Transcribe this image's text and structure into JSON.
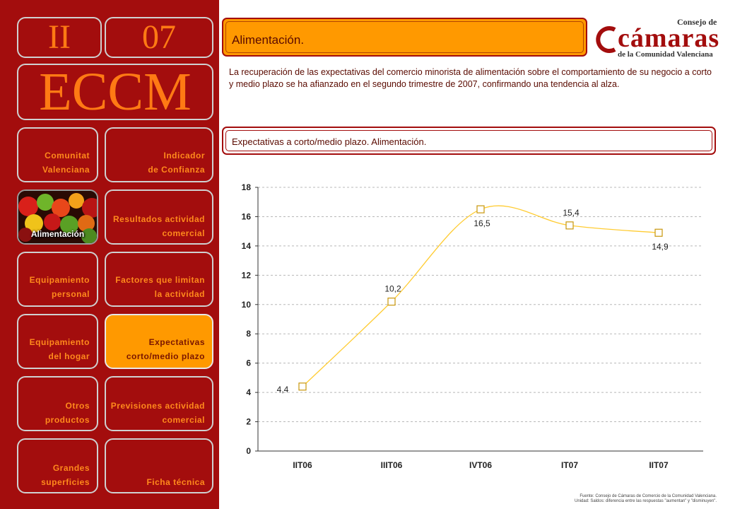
{
  "sidebar": {
    "section": "II",
    "number": "07",
    "acronym": "ECCM",
    "image_tile": {
      "label": "Alimentación",
      "icon": "fruits-image"
    },
    "items": [
      {
        "lines": [
          "Comunitat",
          "Valenciana"
        ]
      },
      {
        "lines": [
          "Indicador",
          "de Confianza"
        ]
      },
      {
        "lines": [
          "Resultados actividad",
          "comercial"
        ]
      },
      {
        "lines": [
          "Equipamiento",
          "personal"
        ]
      },
      {
        "lines": [
          "Factores que limitan",
          "la actividad"
        ]
      },
      {
        "lines": [
          "Equipamiento",
          "del hogar"
        ]
      },
      {
        "lines": [
          "Expectativas",
          "corto/medio plazo"
        ],
        "active": true
      },
      {
        "lines": [
          "Otros",
          "productos"
        ]
      },
      {
        "lines": [
          "Previsiones actividad",
          "comercial"
        ]
      },
      {
        "lines": [
          "Grandes",
          "superficies"
        ]
      },
      {
        "lines": [
          "Ficha técnica"
        ]
      }
    ]
  },
  "header": {
    "title": "Alimentación.",
    "description": "La recuperación de las expectativas del comercio minorista de alimentación sobre el comportamiento de su negocio a corto y medio plazo se ha afianzado en el segundo trimestre de 2007, confirmando una tendencia al alza.",
    "subtitle": "Expectativas a corto/medio plazo. Alimentación."
  },
  "logo": {
    "pre": "Consejo de",
    "main": "cámaras",
    "post": "de la Comunidad Valenciana"
  },
  "colors": {
    "accent": "#ff9900",
    "brand": "#a30d0d",
    "series": "#ffcc33",
    "marker": "#c8960a"
  },
  "chart_data": {
    "type": "line",
    "categories": [
      "IIT06",
      "IIIT06",
      "IVT06",
      "IT07",
      "IIT07"
    ],
    "values": [
      4.4,
      10.2,
      16.5,
      15.4,
      14.9
    ],
    "data_labels": [
      "4,4",
      "10,2",
      "16,5",
      "15,4",
      "14,9"
    ],
    "ylim": [
      0,
      18
    ],
    "yticks": [
      0,
      2,
      4,
      6,
      8,
      10,
      12,
      14,
      16,
      18
    ],
    "grid": true,
    "legend": "none"
  },
  "footnote": {
    "line1": "Fuente: Consejo de Cámaras de Comercio de la Comunidad Valenciana.",
    "line2": "Unidad: Saldos: diferencia entre las respuestas \"aumentan\" y \"disminuyen\"."
  }
}
